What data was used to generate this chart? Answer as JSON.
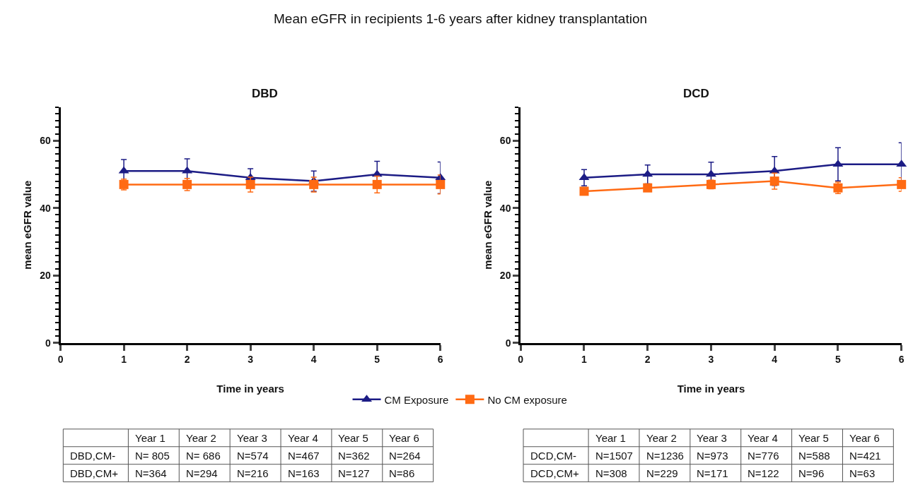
{
  "chart_data": [
    {
      "type": "other",
      "title": "Mean eGFR in recipients 1-6 years after kidney transplantation"
    },
    {
      "type": "line",
      "title": "DBD",
      "xlabel": "Time in years",
      "ylabel": "mean eGFR value",
      "x": [
        1,
        2,
        3,
        4,
        5,
        6
      ],
      "xlim": [
        0,
        6
      ],
      "xticks": [
        0,
        1,
        2,
        3,
        4,
        5,
        6
      ],
      "ylim": [
        0,
        70
      ],
      "yticks": [
        0,
        20,
        40,
        60
      ],
      "legend": "bottom",
      "series": [
        {
          "name": "CM Exposure",
          "color": "#1c1c85",
          "marker": "triangle",
          "values": [
            51,
            51,
            49,
            48,
            50,
            49
          ],
          "errors": [
            3.4,
            3.6,
            2.7,
            3.0,
            3.9,
            4.7
          ]
        },
        {
          "name": "No CM exposure",
          "color": "#ff6a13",
          "marker": "square",
          "values": [
            47,
            47,
            47,
            47,
            47,
            47
          ],
          "errors": [
            1.6,
            1.8,
            2.2,
            2.2,
            2.5,
            2.8
          ]
        }
      ],
      "annotations": [
        "Year 1",
        "Year 2",
        "Year 3",
        "Year 4",
        "Year 5",
        "Year 6",
        "DBD,CM-",
        "N= 805",
        "N= 686",
        "N=574",
        "N=467",
        "N=362",
        "N=264",
        "DBD,CM+",
        "N=364",
        "N=294",
        "N=216",
        "N=163",
        "N=127",
        "N=86"
      ]
    },
    {
      "type": "line",
      "title": "DCD",
      "xlabel": "Time in years",
      "ylabel": "mean eGFR value",
      "x": [
        1,
        2,
        3,
        4,
        5,
        6
      ],
      "xlim": [
        0,
        6
      ],
      "xticks": [
        0,
        1,
        2,
        3,
        4,
        5,
        6
      ],
      "ylim": [
        0,
        70
      ],
      "yticks": [
        0,
        20,
        40,
        60
      ],
      "series": [
        {
          "color": "#1c1c85",
          "marker": "triangle",
          "values": [
            49,
            50,
            50,
            51,
            53,
            53
          ],
          "errors": [
            2.4,
            2.8,
            3.6,
            4.3,
            4.9,
            6.4
          ]
        },
        {
          "color": "#ff6a13",
          "marker": "square",
          "values": [
            45,
            46,
            47,
            48,
            46,
            47
          ],
          "errors": [
            null,
            null,
            1.3,
            2.4,
            1.7,
            2.0
          ]
        }
      ],
      "annotations": [
        "Year 1",
        "Year 2",
        "Year 3",
        "Year 4",
        "Year 5",
        "Year 6",
        "DCD,CM-",
        "N=1507",
        "N=1236",
        "N=973",
        "N=776",
        "N=588",
        "N=421",
        "DCD,CM+",
        "N=308",
        "N=229",
        "N=171",
        "N=122",
        "N=96",
        "N=63"
      ]
    }
  ]
}
